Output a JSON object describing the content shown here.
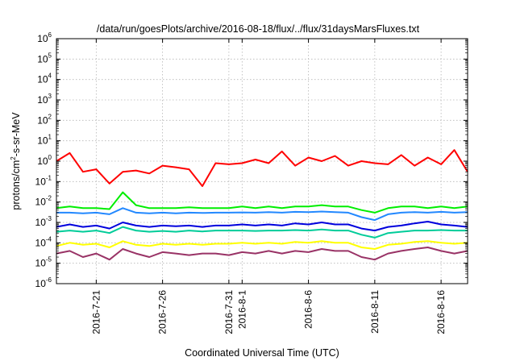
{
  "chart_data": {
    "type": "line",
    "title": "/data/run/goesPlots/archive/2016-08-18/flux/../flux/31daysMarsFluxes.txt",
    "xlabel": "Coordinated Universal Time (UTC)",
    "ylabel": {
      "base": "protons/cm",
      "sup": "2",
      "rest": "-s-sr-MeV"
    },
    "y_scale": "log",
    "ylim": [
      1e-06,
      1000000.0
    ],
    "y_ticks": [
      {
        "base": "10",
        "exp": "-6",
        "value": 1e-06
      },
      {
        "base": "10",
        "exp": "-5",
        "value": 1e-05
      },
      {
        "base": "10",
        "exp": "-4",
        "value": 0.0001
      },
      {
        "base": "10",
        "exp": "-3",
        "value": 0.001
      },
      {
        "base": "10",
        "exp": "-2",
        "value": 0.01
      },
      {
        "base": "10",
        "exp": "-1",
        "value": 0.1
      },
      {
        "base": "10",
        "exp": "0",
        "value": 1
      },
      {
        "base": "10",
        "exp": "1",
        "value": 10
      },
      {
        "base": "10",
        "exp": "2",
        "value": 100
      },
      {
        "base": "10",
        "exp": "3",
        "value": 1000
      },
      {
        "base": "10",
        "exp": "4",
        "value": 10000
      },
      {
        "base": "10",
        "exp": "5",
        "value": 100000
      },
      {
        "base": "10",
        "exp": "6",
        "value": 1000000
      }
    ],
    "xlim": [
      "2016-07-18",
      "2016-08-18"
    ],
    "x_ticks": [
      {
        "label": "2016-7-21",
        "date": "2016-07-21"
      },
      {
        "label": "2016-7-26",
        "date": "2016-07-26"
      },
      {
        "label": "2016-7-31",
        "date": "2016-07-31"
      },
      {
        "label": "2016-8-1",
        "date": "2016-08-01"
      },
      {
        "label": "2016-8-6",
        "date": "2016-08-06"
      },
      {
        "label": "2016-8-11",
        "date": "2016-08-11"
      },
      {
        "label": "2016-8-16",
        "date": "2016-08-16"
      }
    ],
    "grid": true,
    "legend": "none",
    "series": [
      {
        "color": "#ff0000",
        "x": [
          "2016-07-18",
          "2016-07-19",
          "2016-07-20",
          "2016-07-21",
          "2016-07-22",
          "2016-07-23",
          "2016-07-24",
          "2016-07-25",
          "2016-07-26",
          "2016-07-27",
          "2016-07-28",
          "2016-07-29",
          "2016-07-30",
          "2016-07-31",
          "2016-08-01",
          "2016-08-02",
          "2016-08-03",
          "2016-08-04",
          "2016-08-05",
          "2016-08-06",
          "2016-08-07",
          "2016-08-08",
          "2016-08-09",
          "2016-08-10",
          "2016-08-11",
          "2016-08-12",
          "2016-08-13",
          "2016-08-14",
          "2016-08-15",
          "2016-08-16",
          "2016-08-17",
          "2016-08-18"
        ],
        "values": [
          1.0,
          2.5,
          0.3,
          0.4,
          0.08,
          0.3,
          0.35,
          0.25,
          0.6,
          0.5,
          0.4,
          0.06,
          0.8,
          0.7,
          0.8,
          1.2,
          0.8,
          3.0,
          0.6,
          1.5,
          1.0,
          1.8,
          0.6,
          1.0,
          0.8,
          0.7,
          2.0,
          0.6,
          1.5,
          0.7,
          3.5,
          0.3
        ]
      },
      {
        "color": "#00ee00",
        "x": [
          "2016-07-18",
          "2016-07-19",
          "2016-07-20",
          "2016-07-21",
          "2016-07-22",
          "2016-07-23",
          "2016-07-24",
          "2016-07-25",
          "2016-07-26",
          "2016-07-27",
          "2016-07-28",
          "2016-07-29",
          "2016-07-30",
          "2016-07-31",
          "2016-08-01",
          "2016-08-02",
          "2016-08-03",
          "2016-08-04",
          "2016-08-05",
          "2016-08-06",
          "2016-08-07",
          "2016-08-08",
          "2016-08-09",
          "2016-08-10",
          "2016-08-11",
          "2016-08-12",
          "2016-08-13",
          "2016-08-14",
          "2016-08-15",
          "2016-08-16",
          "2016-08-17",
          "2016-08-18"
        ],
        "values": [
          0.005,
          0.006,
          0.005,
          0.005,
          0.0045,
          0.03,
          0.007,
          0.005,
          0.005,
          0.005,
          0.0055,
          0.005,
          0.005,
          0.005,
          0.006,
          0.005,
          0.006,
          0.005,
          0.006,
          0.006,
          0.007,
          0.006,
          0.006,
          0.004,
          0.003,
          0.005,
          0.006,
          0.006,
          0.005,
          0.006,
          0.005,
          0.006
        ]
      },
      {
        "color": "#2288ff",
        "x": [
          "2016-07-18",
          "2016-07-19",
          "2016-07-20",
          "2016-07-21",
          "2016-07-22",
          "2016-07-23",
          "2016-07-24",
          "2016-07-25",
          "2016-07-26",
          "2016-07-27",
          "2016-07-28",
          "2016-07-29",
          "2016-07-30",
          "2016-07-31",
          "2016-08-01",
          "2016-08-02",
          "2016-08-03",
          "2016-08-04",
          "2016-08-05",
          "2016-08-06",
          "2016-08-07",
          "2016-08-08",
          "2016-08-09",
          "2016-08-10",
          "2016-08-11",
          "2016-08-12",
          "2016-08-13",
          "2016-08-14",
          "2016-08-15",
          "2016-08-16",
          "2016-08-17",
          "2016-08-18"
        ],
        "values": [
          0.003,
          0.003,
          0.0028,
          0.003,
          0.0025,
          0.005,
          0.003,
          0.0028,
          0.003,
          0.0028,
          0.003,
          0.0029,
          0.003,
          0.003,
          0.0031,
          0.003,
          0.0032,
          0.003,
          0.0033,
          0.0032,
          0.0034,
          0.0032,
          0.003,
          0.0018,
          0.0013,
          0.0025,
          0.003,
          0.0032,
          0.003,
          0.0033,
          0.003,
          0.0032
        ]
      },
      {
        "color": "#00cc99",
        "x": [
          "2016-07-18",
          "2016-07-19",
          "2016-07-20",
          "2016-07-21",
          "2016-07-22",
          "2016-07-23",
          "2016-07-24",
          "2016-07-25",
          "2016-07-26",
          "2016-07-27",
          "2016-07-28",
          "2016-07-29",
          "2016-07-30",
          "2016-07-31",
          "2016-08-01",
          "2016-08-02",
          "2016-08-03",
          "2016-08-04",
          "2016-08-05",
          "2016-08-06",
          "2016-08-07",
          "2016-08-08",
          "2016-08-09",
          "2016-08-10",
          "2016-08-11",
          "2016-08-12",
          "2016-08-13",
          "2016-08-14",
          "2016-08-15",
          "2016-08-16",
          "2016-08-17",
          "2016-08-18"
        ],
        "values": [
          0.00035,
          0.0004,
          0.00035,
          0.0004,
          0.0003,
          0.0006,
          0.0004,
          0.00035,
          0.00038,
          0.00035,
          0.0004,
          0.00036,
          0.0004,
          0.0004,
          0.0004,
          0.00038,
          0.0004,
          0.0004,
          0.00042,
          0.0004,
          0.00045,
          0.0004,
          0.0004,
          0.00025,
          0.00018,
          0.0003,
          0.00035,
          0.0004,
          0.0004,
          0.00042,
          0.0004,
          0.0004
        ]
      },
      {
        "color": "#0000dd",
        "x": [
          "2016-07-18",
          "2016-07-19",
          "2016-07-20",
          "2016-07-21",
          "2016-07-22",
          "2016-07-23",
          "2016-07-24",
          "2016-07-25",
          "2016-07-26",
          "2016-07-27",
          "2016-07-28",
          "2016-07-29",
          "2016-07-30",
          "2016-07-31",
          "2016-08-01",
          "2016-08-02",
          "2016-08-03",
          "2016-08-04",
          "2016-08-05",
          "2016-08-06",
          "2016-08-07",
          "2016-08-08",
          "2016-08-09",
          "2016-08-10",
          "2016-08-11",
          "2016-08-12",
          "2016-08-13",
          "2016-08-14",
          "2016-08-15",
          "2016-08-16",
          "2016-08-17",
          "2016-08-18"
        ],
        "values": [
          0.0006,
          0.0008,
          0.0006,
          0.0007,
          0.0005,
          0.001,
          0.0007,
          0.0006,
          0.0007,
          0.00065,
          0.0007,
          0.0006,
          0.0007,
          0.0007,
          0.0008,
          0.0007,
          0.0008,
          0.0007,
          0.0009,
          0.0008,
          0.001,
          0.0008,
          0.0008,
          0.0005,
          0.0004,
          0.0006,
          0.0007,
          0.0009,
          0.0011,
          0.0008,
          0.0007,
          0.0006
        ]
      },
      {
        "color": "#ffff00",
        "x": [
          "2016-07-18",
          "2016-07-19",
          "2016-07-20",
          "2016-07-21",
          "2016-07-22",
          "2016-07-23",
          "2016-07-24",
          "2016-07-25",
          "2016-07-26",
          "2016-07-27",
          "2016-07-28",
          "2016-07-29",
          "2016-07-30",
          "2016-07-31",
          "2016-08-01",
          "2016-08-02",
          "2016-08-03",
          "2016-08-04",
          "2016-08-05",
          "2016-08-06",
          "2016-08-07",
          "2016-08-08",
          "2016-08-09",
          "2016-08-10",
          "2016-08-11",
          "2016-08-12",
          "2016-08-13",
          "2016-08-14",
          "2016-08-15",
          "2016-08-16",
          "2016-08-17",
          "2016-08-18"
        ],
        "values": [
          7e-05,
          0.0001,
          8e-05,
          9e-05,
          6e-05,
          0.00012,
          8e-05,
          7e-05,
          9e-05,
          8e-05,
          9e-05,
          8e-05,
          9e-05,
          9e-05,
          0.0001,
          9e-05,
          0.0001,
          9e-05,
          0.00011,
          0.0001,
          0.00012,
          0.0001,
          0.0001,
          6e-05,
          5e-05,
          8e-05,
          9e-05,
          0.00011,
          0.00012,
          0.0001,
          9e-05,
          0.0001
        ]
      },
      {
        "color": "#993366",
        "x": [
          "2016-07-18",
          "2016-07-19",
          "2016-07-20",
          "2016-07-21",
          "2016-07-22",
          "2016-07-23",
          "2016-07-24",
          "2016-07-25",
          "2016-07-26",
          "2016-07-27",
          "2016-07-28",
          "2016-07-29",
          "2016-07-30",
          "2016-07-31",
          "2016-08-01",
          "2016-08-02",
          "2016-08-03",
          "2016-08-04",
          "2016-08-05",
          "2016-08-06",
          "2016-08-07",
          "2016-08-08",
          "2016-08-09",
          "2016-08-10",
          "2016-08-11",
          "2016-08-12",
          "2016-08-13",
          "2016-08-14",
          "2016-08-15",
          "2016-08-16",
          "2016-08-17",
          "2016-08-18"
        ],
        "values": [
          3e-05,
          4e-05,
          2e-05,
          3e-05,
          1.5e-05,
          5e-05,
          3e-05,
          2e-05,
          3.5e-05,
          3e-05,
          2.5e-05,
          3e-05,
          3e-05,
          2.5e-05,
          3.5e-05,
          3e-05,
          4e-05,
          3e-05,
          4e-05,
          3.5e-05,
          5e-05,
          4e-05,
          4e-05,
          2e-05,
          1.5e-05,
          3e-05,
          4e-05,
          5e-05,
          6e-05,
          4e-05,
          3e-05,
          4e-05
        ]
      }
    ]
  }
}
